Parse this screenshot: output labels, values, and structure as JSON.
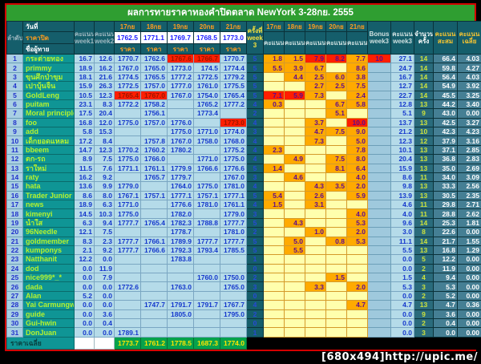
{
  "title": "ผลการทายราคาทองคำปิดตลาด NewYork 3-28กย. 2555",
  "watermark": "[680x494]http://upic.me/",
  "header": {
    "no": "ลำดับ",
    "date": "วันที่",
    "close": "ราคาปิด",
    "name": "ชื่อผู้ทาย",
    "week1": "คะแนน\nweek1",
    "week2": "คะแนน\nweek2",
    "price": "ราคา",
    "times": "ครั้งที่\nweek\n3",
    "score": "คะแนน",
    "bonus": "Bonus\nweek3",
    "score_week3": "คะแนน\nweek3",
    "count": "จำนวน\nครั้ง",
    "total": "คะแนน\nสะสม",
    "average": "คะแนน\nเฉลี่ย"
  },
  "days": [
    "17กย",
    "18กย",
    "19กย",
    "20กย",
    "21กย"
  ],
  "closes": [
    "1762.5",
    "1771.1",
    "1769.7",
    "1768.5",
    "1773.0"
  ],
  "average_row": {
    "label": "ราคาเฉลี่ย",
    "values": [
      "1773.7",
      "1761.2",
      "1778.5",
      "1687.3",
      "1774.0"
    ]
  },
  "rows": [
    {
      "n": "1",
      "name": "กระต่ายทอง",
      "w1": "16.7",
      "w2": "12.6",
      "p": [
        "1770.7",
        "1762.6",
        "*1767.6",
        "*1766.7",
        "1770.7"
      ],
      "t": "5",
      "s": [
        "1.8",
        "1.5",
        "*7.9",
        "*8.2",
        "7.7"
      ],
      "b": "*10",
      "w3": "27.1",
      "c": "14",
      "sum": "66.4",
      "avg": "4.03"
    },
    {
      "n": "2",
      "name": "primmy",
      "w1": "18.9",
      "w2": "16.2",
      "p": [
        "1767.0",
        "1765.0",
        "1773.0",
        "174.5",
        "1774.4"
      ],
      "t": "5",
      "s": [
        "5.5",
        "3.9",
        "6.7",
        "",
        "8.6"
      ],
      "b": "",
      "w3": "24.7",
      "c": "14",
      "sum": "59.8",
      "avg": "4.27"
    },
    {
      "n": "3",
      "name": "ขุนศึกป่าขุม",
      "w1": "18.1",
      "w2": "21.6",
      "p": [
        "1774.5",
        "1765.5",
        "1777.2",
        "1772.5",
        "1779.2"
      ],
      "t": "5",
      "s": [
        "",
        "4.4",
        "2.5",
        "6.0",
        "3.8"
      ],
      "b": "",
      "w3": "16.7",
      "c": "14",
      "sum": "56.4",
      "avg": "4.03"
    },
    {
      "n": "4",
      "name": "เปาบุ้นจิ้น",
      "w1": "15.9",
      "w2": "26.3",
      "p": [
        "1772.5",
        "1757.0",
        "1777.0",
        "1761.0",
        "1775.5"
      ],
      "t": "5",
      "s": [
        "",
        "",
        "2.7",
        "2.5",
        "7.5"
      ],
      "b": "",
      "w3": "12.7",
      "c": "14",
      "sum": "54.9",
      "avg": "3.92"
    },
    {
      "n": "5",
      "name": "GoldLeng",
      "w1": "10.5",
      "w2": "12.3",
      "p": [
        "*1765.4",
        "*1767.0",
        "1767.0",
        "1754.0",
        "1765.4"
      ],
      "t": "5",
      "s": [
        "*7.1",
        "*5.9",
        "7.3",
        "",
        "2.4"
      ],
      "b": "",
      "w3": "22.7",
      "c": "14",
      "sum": "45.5",
      "avg": "3.25"
    },
    {
      "n": "6",
      "name": "puitam",
      "w1": "23.1",
      "w2": "8.3",
      "p": [
        "1772.2",
        "1758.2",
        "",
        "1765.2",
        "1777.2"
      ],
      "t": "4",
      "s": [
        "0.3",
        "",
        "",
        "6.7",
        "5.8"
      ],
      "b": "",
      "w3": "12.8",
      "c": "13",
      "sum": "44.2",
      "avg": "3.40"
    },
    {
      "n": "7",
      "name": "Moral principle",
      "w1": "17.5",
      "w2": "20.4",
      "p": [
        "",
        "1756.1",
        "",
        "1773.4",
        ""
      ],
      "t": "2",
      "s": [
        "",
        "",
        "",
        "5.1",
        ""
      ],
      "b": "",
      "w3": "5.1",
      "c": "9",
      "sum": "43.0",
      "avg": "0.00"
    },
    {
      "n": "8",
      "name": "foo",
      "w1": "16.8",
      "w2": "12.0",
      "p": [
        "1775.0",
        "1757.0",
        "1776.0",
        "",
        "*1773.0"
      ],
      "t": "4",
      "s": [
        "",
        "",
        "3.7",
        "",
        "*10.0"
      ],
      "b": "",
      "w3": "13.7",
      "c": "13",
      "sum": "42.5",
      "avg": "3.27"
    },
    {
      "n": "9",
      "name": "add",
      "w1": "5.8",
      "w2": "15.3",
      "p": [
        "",
        "",
        "1775.0",
        "1771.0",
        "1774.0"
      ],
      "t": "3",
      "s": [
        "",
        "",
        "4.7",
        "7.5",
        "9.0"
      ],
      "b": "",
      "w3": "21.2",
      "c": "10",
      "sum": "42.3",
      "avg": "4.23"
    },
    {
      "n": "10",
      "name": "เด็กยอดแหลม",
      "w1": "17.2",
      "w2": "8.4",
      "p": [
        "",
        "1757.8",
        "1767.0",
        "1758.0",
        "1768.0"
      ],
      "t": "4",
      "s": [
        "",
        "",
        "7.3",
        "",
        "5.0"
      ],
      "b": "",
      "w3": "12.3",
      "c": "12",
      "sum": "37.9",
      "avg": "3.16"
    },
    {
      "n": "11",
      "name": "bbeem",
      "w1": "14.7",
      "w2": "12.3",
      "p": [
        "1770.2",
        "1760.2",
        "1780.2",
        "",
        "1775.2"
      ],
      "t": "4",
      "s": [
        "2.3",
        "",
        "",
        "",
        "7.8"
      ],
      "b": "",
      "w3": "10.1",
      "c": "13",
      "sum": "37.1",
      "avg": "2.85"
    },
    {
      "n": "12",
      "name": "ตก-รถ",
      "w1": "8.9",
      "w2": "7.5",
      "p": [
        "1775.0",
        "1766.0",
        "",
        "1771.0",
        "1775.0"
      ],
      "t": "4",
      "s": [
        "",
        "4.9",
        "",
        "7.5",
        "8.0"
      ],
      "b": "",
      "w3": "20.4",
      "c": "13",
      "sum": "36.8",
      "avg": "2.83"
    },
    {
      "n": "13",
      "name": "ราใหม่",
      "w1": "11.5",
      "w2": "7.6",
      "p": [
        "1771.1",
        "1761.1",
        "1779.9",
        "1766.6",
        "1776.6"
      ],
      "t": "5",
      "s": [
        "1.4",
        "",
        "",
        "8.1",
        "6.4"
      ],
      "b": "",
      "w3": "15.9",
      "c": "13",
      "sum": "35.0",
      "avg": "2.69"
    },
    {
      "n": "14",
      "name": "raty",
      "w1": "16.2",
      "w2": "9.2",
      "p": [
        "",
        "1765.7",
        "1779.7",
        "",
        "1767.0"
      ],
      "t": "3",
      "s": [
        "",
        "4.6",
        "",
        "",
        "4.0"
      ],
      "b": "",
      "w3": "8.6",
      "c": "11",
      "sum": "34.0",
      "avg": "3.09"
    },
    {
      "n": "15",
      "name": "hata",
      "w1": "13.6",
      "w2": "9.9",
      "p": [
        "1779.0",
        "",
        "1764.0",
        "1775.0",
        "1781.0"
      ],
      "t": "4",
      "s": [
        "",
        "",
        "4.3",
        "3.5",
        "2.0"
      ],
      "b": "",
      "w3": "9.8",
      "c": "13",
      "sum": "33.3",
      "avg": "2.56"
    },
    {
      "n": "16",
      "name": "Trader Junior",
      "w1": "8.6",
      "w2": "8.0",
      "p": [
        "1767.1",
        "1757.1",
        "1777.1",
        "1757.1",
        "1777.1"
      ],
      "t": "5",
      "s": [
        "5.4",
        "",
        "2.6",
        "",
        "5.9"
      ],
      "b": "",
      "w3": "13.9",
      "c": "13",
      "sum": "30.5",
      "avg": "2.35"
    },
    {
      "n": "17",
      "name": "news",
      "w1": "18.9",
      "w2": "6.3",
      "p": [
        "1771.0",
        "",
        "1776.6",
        "1781.0",
        "1761.1"
      ],
      "t": "4",
      "s": [
        "1.5",
        "",
        "3.1",
        "",
        ""
      ],
      "b": "",
      "w3": "4.6",
      "c": "11",
      "sum": "29.8",
      "avg": "2.71"
    },
    {
      "n": "18",
      "name": "kimenyi",
      "w1": "14.5",
      "w2": "10.3",
      "p": [
        "1775.0",
        "",
        "1782.0",
        "",
        "1779.0"
      ],
      "t": "3",
      "s": [
        "",
        "",
        "",
        "",
        "4.0"
      ],
      "b": "",
      "w3": "4.0",
      "c": "11",
      "sum": "28.8",
      "avg": "2.62"
    },
    {
      "n": "19",
      "name": "น้ำใส",
      "w1": "6.3",
      "w2": "9.4",
      "p": [
        "1777.7",
        "1765.4",
        "1782.3",
        "1788.8",
        "1777.7"
      ],
      "t": "5",
      "s": [
        "",
        "4.3",
        "",
        "",
        "5.3"
      ],
      "b": "",
      "w3": "9.6",
      "c": "14",
      "sum": "25.3",
      "avg": "1.81"
    },
    {
      "n": "20",
      "name": "96Needle",
      "w1": "12.1",
      "w2": "7.5",
      "p": [
        "",
        "",
        "1778.7",
        "",
        "1781.0"
      ],
      "t": "2",
      "s": [
        "",
        "",
        "1.0",
        "",
        "2.0"
      ],
      "b": "",
      "w3": "3.0",
      "c": "8",
      "sum": "22.6",
      "avg": "0.00"
    },
    {
      "n": "21",
      "name": "goldmember",
      "w1": "8.3",
      "w2": "2.3",
      "p": [
        "1777.7",
        "1766.1",
        "1789.9",
        "1777.7",
        "1777.7"
      ],
      "t": "5",
      "s": [
        "",
        "5.0",
        "",
        "0.8",
        "5.3"
      ],
      "b": "",
      "w3": "11.1",
      "c": "14",
      "sum": "21.7",
      "avg": "1.55"
    },
    {
      "n": "22",
      "name": "kumponys",
      "w1": "2.1",
      "w2": "9.2",
      "p": [
        "1777.7",
        "1766.6",
        "1792.3",
        "1793.4",
        "1785.5"
      ],
      "t": "5",
      "s": [
        "",
        "5.5",
        "",
        "",
        ""
      ],
      "b": "",
      "w3": "5.5",
      "c": "13",
      "sum": "16.8",
      "avg": "1.29"
    },
    {
      "n": "23",
      "name": "Natthanit",
      "w1": "12.2",
      "w2": "0.0",
      "p": [
        "",
        "",
        "1783.8",
        "",
        ""
      ],
      "t": "1",
      "s": [
        "",
        "",
        "",
        "",
        ""
      ],
      "b": "",
      "w3": "0.0",
      "c": "5",
      "sum": "12.2",
      "avg": "0.00"
    },
    {
      "n": "24",
      "name": "dod",
      "w1": "0.0",
      "w2": "11.9",
      "p": [
        "",
        "",
        "",
        "",
        ""
      ],
      "t": "0",
      "s": [
        "",
        "",
        "",
        "",
        ""
      ],
      "b": "",
      "w3": "0.0",
      "c": "2",
      "sum": "11.9",
      "avg": "0.00"
    },
    {
      "n": "25",
      "name": "nice999*_*",
      "w1": "0.0",
      "w2": "7.9",
      "p": [
        "",
        "",
        "",
        "1760.0",
        "1750.0"
      ],
      "t": "2",
      "s": [
        "",
        "",
        "",
        "1.5",
        ""
      ],
      "b": "",
      "w3": "1.5",
      "c": "4",
      "sum": "9.4",
      "avg": "0.00"
    },
    {
      "n": "26",
      "name": "dada",
      "w1": "0.0",
      "w2": "0.0",
      "p": [
        "1772.6",
        "",
        "1763.0",
        "",
        "1765.0"
      ],
      "t": "3",
      "s": [
        "",
        "",
        "3.3",
        "",
        "2.0"
      ],
      "b": "",
      "w3": "5.3",
      "c": "3",
      "sum": "5.3",
      "avg": "0.00"
    },
    {
      "n": "27",
      "name": "Alan",
      "w1": "5.2",
      "w2": "0.0",
      "p": [
        "",
        "",
        "",
        "",
        ""
      ],
      "t": "0",
      "s": [
        "",
        "",
        "",
        "",
        ""
      ],
      "b": "",
      "w3": "0.0",
      "c": "2",
      "sum": "5.2",
      "avg": "0.00"
    },
    {
      "n": "28",
      "name": "Yai Carmungwed",
      "w1": "0.0",
      "w2": "0.0",
      "p": [
        "",
        "1747.7",
        "1791.7",
        "1791.7",
        "1767.7"
      ],
      "t": "4",
      "s": [
        "",
        "",
        "",
        "",
        "4.7"
      ],
      "b": "",
      "w3": "4.7",
      "c": "13",
      "sum": "4.7",
      "avg": "0.36"
    },
    {
      "n": "29",
      "name": "guide",
      "w1": "0.0",
      "w2": "3.6",
      "p": [
        "",
        "",
        "1805.0",
        "",
        "1795.0"
      ],
      "t": "2",
      "s": [
        "",
        "",
        "",
        "",
        ""
      ],
      "b": "",
      "w3": "0.0",
      "c": "9",
      "sum": "3.6",
      "avg": "0.00"
    },
    {
      "n": "30",
      "name": "Gui-hwin",
      "w1": "0.0",
      "w2": "0.4",
      "p": [
        "",
        "",
        "",
        "",
        ""
      ],
      "t": "0",
      "s": [
        "",
        "",
        "",
        "",
        ""
      ],
      "b": "",
      "w3": "0.0",
      "c": "2",
      "sum": "0.4",
      "avg": "0.00"
    },
    {
      "n": "31",
      "name": "DonJuan",
      "w1": "0.0",
      "w2": "0.0",
      "p": [
        "1789.1",
        "",
        "",
        "",
        ""
      ],
      "t": "1",
      "s": [
        "",
        "",
        "",
        "",
        ""
      ],
      "b": "",
      "w3": "0.0",
      "c": "3",
      "sum": "0.0",
      "avg": "0.00"
    }
  ]
}
